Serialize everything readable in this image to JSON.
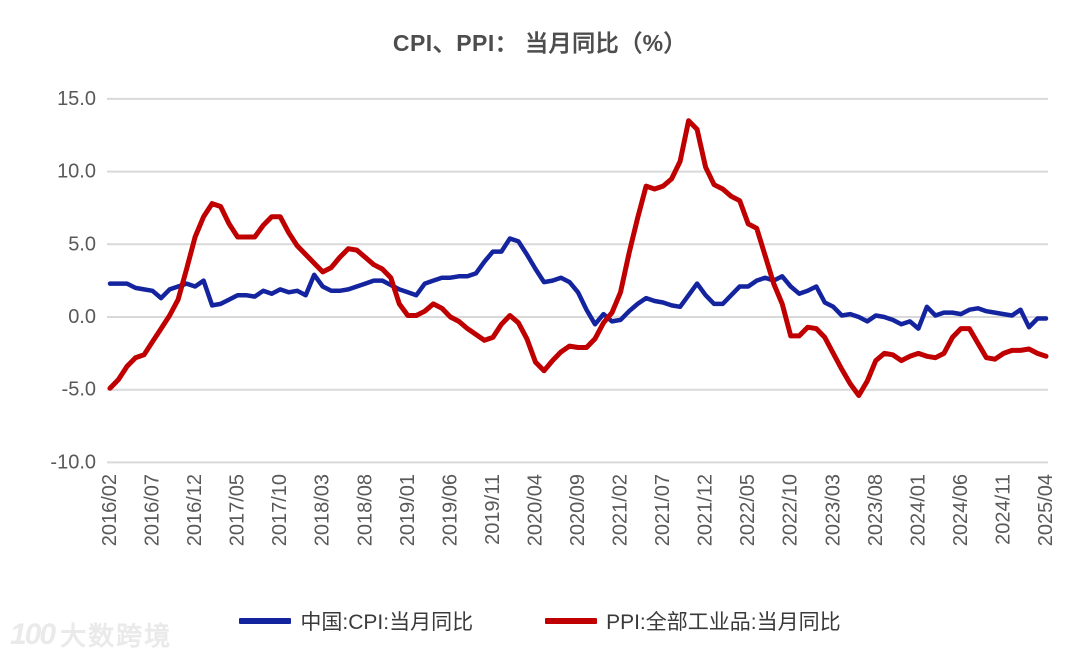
{
  "chart_data": {
    "type": "line",
    "title": "CPI、PPI： 当月同比（%）",
    "ylabel": "",
    "xlabel": "",
    "ylim": [
      -10,
      15
    ],
    "grid": true,
    "grid_color": "#d9d9d9",
    "axis_label_color": "#595959",
    "legend_position": "bottom",
    "y_ticks": [
      15,
      10,
      5,
      0,
      -5,
      -10
    ],
    "y_tick_labels": [
      "15.0",
      "10.0",
      "5.0",
      "0.0",
      "-5.0",
      "-10.0"
    ],
    "x_tick_labels": [
      "2016/02",
      "2016/07",
      "2016/12",
      "2017/05",
      "2017/10",
      "2018/03",
      "2018/08",
      "2019/01",
      "2019/06",
      "2019/11",
      "2020/04",
      "2020/09",
      "2021/02",
      "2021/07",
      "2021/12",
      "2022/05",
      "2022/10",
      "2023/03",
      "2023/08",
      "2024/01",
      "2024/06",
      "2024/11",
      "2025/04"
    ],
    "x": [
      "2016/02",
      "2016/03",
      "2016/04",
      "2016/05",
      "2016/06",
      "2016/07",
      "2016/08",
      "2016/09",
      "2016/10",
      "2016/11",
      "2016/12",
      "2017/01",
      "2017/02",
      "2017/03",
      "2017/04",
      "2017/05",
      "2017/06",
      "2017/07",
      "2017/08",
      "2017/09",
      "2017/10",
      "2017/11",
      "2017/12",
      "2018/01",
      "2018/02",
      "2018/03",
      "2018/04",
      "2018/05",
      "2018/06",
      "2018/07",
      "2018/08",
      "2018/09",
      "2018/10",
      "2018/11",
      "2018/12",
      "2019/01",
      "2019/02",
      "2019/03",
      "2019/04",
      "2019/05",
      "2019/06",
      "2019/07",
      "2019/08",
      "2019/09",
      "2019/10",
      "2019/11",
      "2019/12",
      "2020/01",
      "2020/02",
      "2020/03",
      "2020/04",
      "2020/05",
      "2020/06",
      "2020/07",
      "2020/08",
      "2020/09",
      "2020/10",
      "2020/11",
      "2020/12",
      "2021/01",
      "2021/02",
      "2021/03",
      "2021/04",
      "2021/05",
      "2021/06",
      "2021/07",
      "2021/08",
      "2021/09",
      "2021/10",
      "2021/11",
      "2021/12",
      "2022/01",
      "2022/02",
      "2022/03",
      "2022/04",
      "2022/05",
      "2022/06",
      "2022/07",
      "2022/08",
      "2022/09",
      "2022/10",
      "2022/11",
      "2022/12",
      "2023/01",
      "2023/02",
      "2023/03",
      "2023/04",
      "2023/05",
      "2023/06",
      "2023/07",
      "2023/08",
      "2023/09",
      "2023/10",
      "2023/11",
      "2023/12",
      "2024/01",
      "2024/02",
      "2024/03",
      "2024/04",
      "2024/05",
      "2024/06",
      "2024/07",
      "2024/08",
      "2024/09",
      "2024/10",
      "2024/11",
      "2024/12",
      "2025/01",
      "2025/02",
      "2025/03",
      "2025/04"
    ],
    "series": [
      {
        "name": "中国:CPI:当月同比",
        "color": "#14249f",
        "values": [
          2.3,
          2.3,
          2.3,
          2.0,
          1.9,
          1.8,
          1.3,
          1.9,
          2.1,
          2.3,
          2.1,
          2.5,
          0.8,
          0.9,
          1.2,
          1.5,
          1.5,
          1.4,
          1.8,
          1.6,
          1.9,
          1.7,
          1.8,
          1.5,
          2.9,
          2.1,
          1.8,
          1.8,
          1.9,
          2.1,
          2.3,
          2.5,
          2.5,
          2.2,
          1.9,
          1.7,
          1.5,
          2.3,
          2.5,
          2.7,
          2.7,
          2.8,
          2.8,
          3.0,
          3.8,
          4.5,
          4.5,
          5.4,
          5.2,
          4.3,
          3.3,
          2.4,
          2.5,
          2.7,
          2.4,
          1.7,
          0.5,
          -0.5,
          0.2,
          -0.3,
          -0.2,
          0.4,
          0.9,
          1.3,
          1.1,
          1.0,
          0.8,
          0.7,
          1.5,
          2.3,
          1.5,
          0.9,
          0.9,
          1.5,
          2.1,
          2.1,
          2.5,
          2.7,
          2.5,
          2.8,
          2.1,
          1.6,
          1.8,
          2.1,
          1.0,
          0.7,
          0.1,
          0.2,
          0.0,
          -0.3,
          0.1,
          0.0,
          -0.2,
          -0.5,
          -0.3,
          -0.8,
          0.7,
          0.1,
          0.3,
          0.3,
          0.2,
          0.5,
          0.6,
          0.4,
          0.3,
          0.2,
          0.1,
          0.5,
          -0.7,
          -0.1,
          -0.1
        ]
      },
      {
        "name": "PPI:全部工业品:当月同比",
        "color": "#c00000",
        "values": [
          -4.9,
          -4.3,
          -3.4,
          -2.8,
          -2.6,
          -1.7,
          -0.8,
          0.1,
          1.2,
          3.3,
          5.5,
          6.9,
          7.8,
          7.6,
          6.4,
          5.5,
          5.5,
          5.5,
          6.3,
          6.9,
          6.9,
          5.8,
          4.9,
          4.3,
          3.7,
          3.1,
          3.4,
          4.1,
          4.7,
          4.6,
          4.1,
          3.6,
          3.3,
          2.7,
          0.9,
          0.1,
          0.1,
          0.4,
          0.9,
          0.6,
          0.0,
          -0.3,
          -0.8,
          -1.2,
          -1.6,
          -1.4,
          -0.5,
          0.1,
          -0.4,
          -1.5,
          -3.1,
          -3.7,
          -3.0,
          -2.4,
          -2.0,
          -2.1,
          -2.1,
          -1.5,
          -0.4,
          0.3,
          1.7,
          4.4,
          6.8,
          9.0,
          8.8,
          9.0,
          9.5,
          10.7,
          13.5,
          12.9,
          10.3,
          9.1,
          8.8,
          8.3,
          8.0,
          6.4,
          6.1,
          4.2,
          2.3,
          0.9,
          -1.3,
          -1.3,
          -0.7,
          -0.8,
          -1.4,
          -2.5,
          -3.6,
          -4.6,
          -5.4,
          -4.4,
          -3.0,
          -2.5,
          -2.6,
          -3.0,
          -2.7,
          -2.5,
          -2.7,
          -2.8,
          -2.5,
          -1.4,
          -0.8,
          -0.8,
          -1.8,
          -2.8,
          -2.9,
          -2.5,
          -2.3,
          -2.3,
          -2.2,
          -2.5,
          -2.7
        ]
      }
    ]
  },
  "watermark": {
    "logo": "100",
    "text": "大数跨境"
  }
}
